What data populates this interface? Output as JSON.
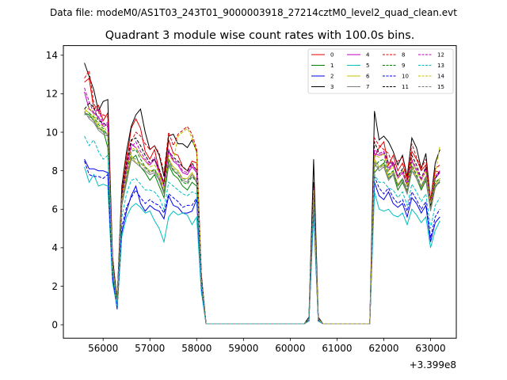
{
  "header": {
    "file_label": "Data file: modeM0/AS1T03_243T01_9000003918_27214cztM0_level2_quad_clean.evt"
  },
  "chart_data": {
    "type": "line",
    "title": "Quadrant 3 module wise count rates with 100.0s bins.",
    "xlabel": "",
    "ylabel": "",
    "offset_label": "+3.399e8",
    "xlim": [
      55150,
      63550
    ],
    "ylim": [
      -0.7,
      14.5
    ],
    "xticks": [
      56000,
      57000,
      58000,
      59000,
      60000,
      61000,
      62000,
      63000
    ],
    "xtick_labels": [
      "56000",
      "57000",
      "58000",
      "59000",
      "60000",
      "61000",
      "62000",
      "63000"
    ],
    "yticks": [
      0,
      2,
      4,
      6,
      8,
      10,
      12,
      14
    ],
    "ytick_labels": [
      "0",
      "2",
      "4",
      "6",
      "8",
      "10",
      "12",
      "14"
    ],
    "grid": false,
    "legend_position": "top-right",
    "x": [
      55600,
      55700,
      55800,
      55900,
      56000,
      56100,
      56200,
      56300,
      56400,
      56500,
      56600,
      56700,
      56800,
      56900,
      57000,
      57100,
      57200,
      57300,
      57400,
      57500,
      57600,
      57700,
      57800,
      57900,
      58000,
      58100,
      58200,
      58300,
      58400,
      60300,
      60400,
      60500,
      60600,
      60700,
      61700,
      61800,
      61900,
      62000,
      62100,
      62200,
      62300,
      62400,
      62500,
      62600,
      62700,
      62800,
      62900,
      63000,
      63100,
      63200
    ],
    "series": [
      {
        "name": "0",
        "color": "#e00000",
        "dash": "solid",
        "values": [
          12.6,
          12.8,
          11.2,
          11.4,
          10.6,
          11.0,
          3.6,
          1.0,
          6.8,
          8.5,
          10.2,
          10.7,
          10.2,
          9.0,
          8.6,
          9.1,
          8.0,
          7.4,
          9.6,
          8.9,
          8.8,
          8.2,
          8.0,
          8.5,
          8.4,
          2.5,
          0.05,
          0.05,
          0.05,
          0.05,
          0.3,
          7.2,
          0.3,
          0.05,
          0.05,
          8.7,
          9.2,
          9.5,
          8.3,
          8.8,
          8.0,
          8.4,
          7.5,
          9.0,
          8.6,
          8.0,
          8.3,
          6.4,
          8.0,
          7.9
        ]
      },
      {
        "name": "1",
        "color": "#008000",
        "dash": "solid",
        "values": [
          11.0,
          10.9,
          10.6,
          10.2,
          10.1,
          9.2,
          3.0,
          1.0,
          6.2,
          7.4,
          8.6,
          8.8,
          8.2,
          7.9,
          7.5,
          7.8,
          7.2,
          6.6,
          8.3,
          7.8,
          7.6,
          7.2,
          7.0,
          7.4,
          7.2,
          2.2,
          0.05,
          0.05,
          0.05,
          0.05,
          0.3,
          6.8,
          0.3,
          0.05,
          0.05,
          7.9,
          8.2,
          8.4,
          7.6,
          7.8,
          7.0,
          7.4,
          6.8,
          8.0,
          7.6,
          7.0,
          7.5,
          6.0,
          7.2,
          7.4
        ]
      },
      {
        "name": "2",
        "color": "#0000ee",
        "dash": "solid",
        "values": [
          8.6,
          8.1,
          8.1,
          8.0,
          8.0,
          7.9,
          2.5,
          0.8,
          4.8,
          5.9,
          6.7,
          7.2,
          6.3,
          5.9,
          6.2,
          6.0,
          5.9,
          5.5,
          6.7,
          6.2,
          6.1,
          5.8,
          5.8,
          5.9,
          6.5,
          1.9,
          0.05,
          0.05,
          0.05,
          0.05,
          0.2,
          6.0,
          0.2,
          0.05,
          0.05,
          7.4,
          6.7,
          6.5,
          6.9,
          6.3,
          6.1,
          6.3,
          5.6,
          6.6,
          6.3,
          5.8,
          6.2,
          4.3,
          5.3,
          5.6
        ]
      },
      {
        "name": "3",
        "color": "#000000",
        "dash": "solid",
        "values": [
          13.6,
          12.9,
          12.2,
          11.1,
          11.6,
          11.7,
          3.5,
          1.3,
          7.2,
          9.0,
          10.3,
          10.9,
          11.2,
          10.0,
          9.1,
          9.3,
          8.8,
          7.7,
          9.8,
          9.9,
          9.4,
          9.4,
          9.2,
          9.6,
          9.0,
          2.6,
          0.05,
          0.05,
          0.05,
          0.05,
          0.4,
          8.6,
          0.4,
          0.05,
          0.05,
          11.1,
          9.6,
          9.8,
          9.5,
          9.0,
          8.3,
          8.8,
          7.7,
          9.7,
          9.2,
          8.1,
          8.9,
          6.4,
          8.4,
          9.1
        ]
      },
      {
        "name": "4",
        "color": "#bf00bf",
        "dash": "solid",
        "values": [
          12.1,
          11.2,
          11.0,
          10.8,
          10.3,
          10.4,
          3.2,
          1.1,
          6.5,
          8.0,
          9.4,
          9.2,
          8.8,
          8.5,
          8.3,
          8.6,
          7.9,
          7.2,
          9.0,
          8.5,
          8.3,
          7.9,
          7.8,
          8.2,
          7.9,
          2.4,
          0.05,
          0.05,
          0.05,
          0.05,
          0.3,
          7.0,
          0.3,
          0.05,
          0.05,
          8.9,
          8.8,
          8.9,
          8.0,
          8.4,
          7.6,
          7.9,
          7.2,
          8.5,
          8.0,
          7.5,
          8.0,
          6.2,
          7.6,
          7.9
        ]
      },
      {
        "name": "5",
        "color": "#00bfbf",
        "dash": "solid",
        "values": [
          8.2,
          7.4,
          7.8,
          7.2,
          7.3,
          7.2,
          2.2,
          0.9,
          4.6,
          5.6,
          6.1,
          6.3,
          6.1,
          5.8,
          5.9,
          5.4,
          5.0,
          4.3,
          5.6,
          5.9,
          5.7,
          5.8,
          5.7,
          5.2,
          5.6,
          1.7,
          0.05,
          0.05,
          0.05,
          0.05,
          0.2,
          5.8,
          0.2,
          0.05,
          0.05,
          6.9,
          6.0,
          5.9,
          6.0,
          5.7,
          5.6,
          5.8,
          5.2,
          6.0,
          5.7,
          5.3,
          5.6,
          4.0,
          4.9,
          5.4
        ]
      },
      {
        "name": "6",
        "color": "#bfbf00",
        "dash": "solid",
        "values": [
          11.2,
          11.0,
          10.7,
          10.3,
          10.1,
          9.9,
          3.1,
          1.1,
          6.3,
          7.6,
          8.8,
          8.4,
          8.4,
          8.2,
          8.0,
          8.0,
          7.8,
          6.9,
          8.6,
          8.2,
          8.0,
          7.6,
          7.6,
          7.9,
          7.5,
          2.3,
          0.05,
          0.05,
          0.05,
          0.05,
          0.3,
          6.8,
          0.3,
          0.05,
          0.05,
          8.6,
          8.2,
          8.3,
          7.7,
          8.0,
          7.3,
          7.6,
          6.9,
          8.2,
          7.7,
          7.2,
          7.7,
          6.0,
          7.3,
          7.6
        ]
      },
      {
        "name": "7",
        "color": "#7f7f7f",
        "dash": "solid",
        "values": [
          11.1,
          10.7,
          10.5,
          10.1,
          9.9,
          9.8,
          3.0,
          1.1,
          6.2,
          7.5,
          8.6,
          8.4,
          8.2,
          8.0,
          7.8,
          7.9,
          7.5,
          6.8,
          8.4,
          8.0,
          7.8,
          7.5,
          7.4,
          7.8,
          7.4,
          2.3,
          0.05,
          0.05,
          0.05,
          0.05,
          0.3,
          6.9,
          0.3,
          0.05,
          0.05,
          8.4,
          8.0,
          8.2,
          7.5,
          7.8,
          7.2,
          7.5,
          6.8,
          8.0,
          7.6,
          7.1,
          7.6,
          5.9,
          7.1,
          7.5
        ]
      },
      {
        "name": "8",
        "color": "#e00000",
        "dash": "dashed",
        "values": [
          12.8,
          13.2,
          11.5,
          11.0,
          10.9,
          10.8,
          3.5,
          1.1,
          7.0,
          8.8,
          9.5,
          10.0,
          9.8,
          9.4,
          9.1,
          9.3,
          8.9,
          7.9,
          10.0,
          9.3,
          9.9,
          10.1,
          10.3,
          9.9,
          9.1,
          2.5,
          0.05,
          0.05,
          0.05,
          0.05,
          0.3,
          7.3,
          0.3,
          0.05,
          0.05,
          9.7,
          9.3,
          9.1,
          8.9,
          8.2,
          8.5,
          8.7,
          7.6,
          9.4,
          8.7,
          8.1,
          8.6,
          6.5,
          8.1,
          8.3
        ]
      },
      {
        "name": "9",
        "color": "#008000",
        "dash": "dashed",
        "values": [
          10.9,
          11.0,
          10.8,
          10.4,
          10.2,
          9.8,
          3.1,
          1.0,
          6.4,
          7.8,
          9.0,
          9.1,
          8.6,
          8.2,
          7.9,
          8.1,
          7.6,
          6.9,
          8.6,
          8.0,
          7.8,
          7.4,
          7.3,
          7.7,
          7.4,
          2.3,
          0.05,
          0.05,
          0.05,
          0.05,
          0.3,
          6.9,
          0.3,
          0.05,
          0.05,
          8.2,
          8.5,
          8.6,
          7.8,
          8.0,
          7.2,
          7.6,
          7.0,
          8.3,
          7.8,
          7.2,
          7.7,
          6.1,
          7.4,
          7.6
        ]
      },
      {
        "name": "10",
        "color": "#0000ee",
        "dash": "dashed",
        "values": [
          8.5,
          7.8,
          7.7,
          7.7,
          7.6,
          7.8,
          2.5,
          0.9,
          5.1,
          6.1,
          6.6,
          7.0,
          6.6,
          6.3,
          6.5,
          6.3,
          6.2,
          5.8,
          6.8,
          6.6,
          6.4,
          6.1,
          6.2,
          6.2,
          6.6,
          1.9,
          0.05,
          0.05,
          0.05,
          0.05,
          0.2,
          6.2,
          0.2,
          0.05,
          0.05,
          7.7,
          7.1,
          6.8,
          7.1,
          6.6,
          6.3,
          6.5,
          5.9,
          6.9,
          6.5,
          6.0,
          6.4,
          4.5,
          5.6,
          6.0
        ]
      },
      {
        "name": "11",
        "color": "#000000",
        "dash": "dashed",
        "values": [
          11.2,
          11.5,
          11.3,
          10.6,
          10.5,
          10.3,
          3.3,
          1.2,
          6.8,
          8.3,
          9.6,
          9.7,
          9.3,
          8.8,
          8.4,
          8.6,
          8.1,
          7.3,
          9.0,
          8.7,
          8.5,
          8.2,
          8.0,
          8.4,
          8.0,
          2.4,
          0.05,
          0.05,
          0.05,
          0.05,
          0.3,
          7.4,
          0.3,
          0.05,
          0.05,
          9.5,
          8.9,
          9.0,
          8.4,
          8.4,
          7.7,
          8.1,
          7.3,
          8.8,
          8.3,
          7.6,
          8.2,
          6.2,
          7.6,
          8.0
        ]
      },
      {
        "name": "12",
        "color": "#bf00bf",
        "dash": "dashed",
        "values": [
          12.3,
          11.6,
          11.0,
          11.2,
          10.4,
          10.5,
          3.2,
          1.1,
          6.6,
          8.1,
          9.2,
          9.5,
          9.0,
          8.6,
          8.4,
          8.7,
          8.0,
          7.2,
          9.1,
          8.6,
          8.4,
          8.0,
          7.9,
          8.3,
          8.0,
          2.4,
          0.05,
          0.05,
          0.05,
          0.05,
          0.3,
          7.1,
          0.3,
          0.05,
          0.05,
          9.1,
          8.9,
          9.0,
          8.1,
          8.5,
          7.7,
          8.0,
          7.3,
          8.6,
          8.1,
          7.6,
          8.1,
          6.3,
          7.7,
          8.0
        ]
      },
      {
        "name": "13",
        "color": "#00bfbf",
        "dash": "dashed",
        "values": [
          9.8,
          9.3,
          9.6,
          9.0,
          8.6,
          8.8,
          2.8,
          1.0,
          5.6,
          6.8,
          7.5,
          7.6,
          7.3,
          7.0,
          7.0,
          6.9,
          6.6,
          6.0,
          7.4,
          7.2,
          7.0,
          6.8,
          6.7,
          6.9,
          6.8,
          2.0,
          0.05,
          0.05,
          0.05,
          0.05,
          0.2,
          6.4,
          0.2,
          0.05,
          0.05,
          7.8,
          7.4,
          7.4,
          7.1,
          7.0,
          6.6,
          6.9,
          6.2,
          7.3,
          6.9,
          6.4,
          6.8,
          5.0,
          6.2,
          6.6
        ]
      },
      {
        "name": "14",
        "color": "#bfbf00",
        "dash": "dashed",
        "values": [
          11.0,
          11.3,
          10.9,
          10.5,
          10.3,
          10.0,
          3.2,
          1.1,
          6.5,
          7.9,
          9.1,
          9.2,
          8.8,
          8.5,
          8.2,
          8.3,
          7.9,
          7.1,
          8.8,
          8.5,
          9.8,
          10.0,
          10.2,
          9.7,
          8.9,
          2.4,
          0.05,
          0.05,
          0.05,
          0.05,
          0.3,
          7.0,
          0.3,
          0.05,
          0.05,
          8.8,
          8.7,
          8.9,
          8.0,
          8.2,
          7.6,
          8.0,
          7.2,
          8.6,
          8.0,
          7.5,
          8.0,
          6.3,
          7.8,
          9.3
        ]
      },
      {
        "name": "15",
        "color": "#7f7f7f",
        "dash": "dashed",
        "values": [
          11.0,
          10.8,
          10.6,
          10.2,
          10.0,
          9.9,
          3.1,
          1.1,
          6.3,
          7.6,
          8.7,
          8.6,
          8.4,
          8.1,
          7.9,
          8.0,
          7.6,
          6.9,
          8.5,
          8.1,
          7.9,
          7.6,
          7.5,
          7.8,
          7.5,
          2.3,
          0.05,
          0.05,
          0.05,
          0.05,
          0.3,
          6.8,
          0.3,
          0.05,
          0.05,
          8.5,
          8.1,
          8.3,
          7.6,
          7.9,
          7.2,
          7.6,
          6.9,
          8.1,
          7.7,
          7.2,
          7.7,
          6.0,
          7.2,
          7.5
        ]
      }
    ]
  }
}
